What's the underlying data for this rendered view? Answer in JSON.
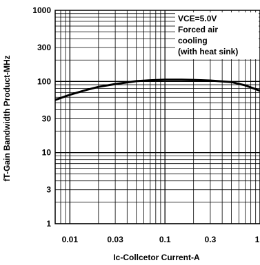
{
  "chart_data": {
    "type": "line",
    "title": "",
    "xlabel": "Ic-Collcetor Current-A",
    "ylabel": "fT-Gain Bandwidth Product-MHz",
    "xscale": "log",
    "yscale": "log",
    "xlim": [
      0.007,
      1
    ],
    "ylim": [
      1,
      1000
    ],
    "grid": true,
    "x_ticks": [
      "0.01",
      "0.03",
      "0.1",
      "0.3",
      "1"
    ],
    "y_ticks": [
      "1",
      "3",
      "10",
      "30",
      "100",
      "300",
      "1000"
    ],
    "annotation": [
      "VCE=5.0V",
      "Forced air",
      "cooling",
      "(with heat sink)"
    ],
    "series": [
      {
        "x": [
          0.007,
          0.01,
          0.015,
          0.02,
          0.03,
          0.05,
          0.07,
          0.1,
          0.15,
          0.2,
          0.3,
          0.5,
          0.7,
          1.0
        ],
        "y": [
          55,
          65,
          76,
          84,
          92,
          101,
          104,
          106,
          106,
          105,
          103,
          98,
          88,
          74
        ]
      }
    ]
  }
}
